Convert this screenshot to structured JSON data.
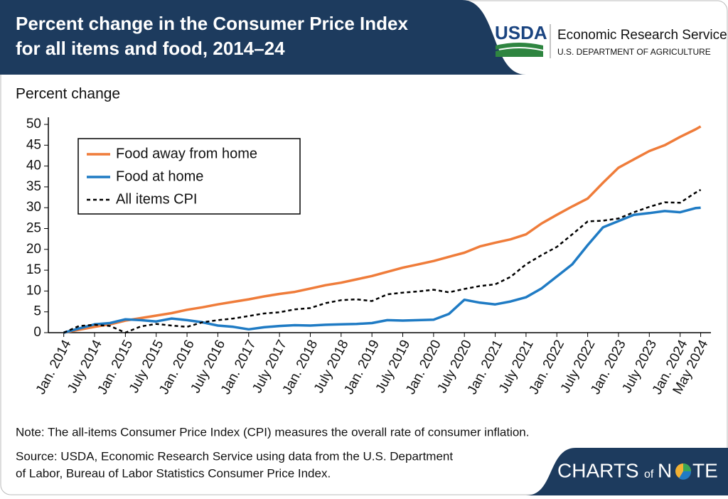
{
  "chart_data": {
    "type": "line",
    "title": [
      "Percent change in the Consumer Price Index",
      "for all items and food, 2014–24"
    ],
    "y_label": "Percent change",
    "x": [
      "2014-01",
      "2014-04",
      "2014-07",
      "2014-10",
      "2015-01",
      "2015-04",
      "2015-07",
      "2015-10",
      "2016-01",
      "2016-04",
      "2016-07",
      "2016-10",
      "2017-01",
      "2017-04",
      "2017-07",
      "2017-10",
      "2018-01",
      "2018-04",
      "2018-07",
      "2018-10",
      "2019-01",
      "2019-04",
      "2019-07",
      "2019-10",
      "2020-01",
      "2020-04",
      "2020-07",
      "2020-10",
      "2021-01",
      "2021-04",
      "2021-07",
      "2021-10",
      "2022-01",
      "2022-04",
      "2022-07",
      "2022-10",
      "2023-01",
      "2023-04",
      "2023-07",
      "2023-10",
      "2024-01",
      "2024-04",
      "2024-05"
    ],
    "series": [
      {
        "name": "Food away from home",
        "color": "#ef7c3a",
        "dash": false,
        "values": [
          0,
          0.7,
          1.4,
          2.0,
          2.9,
          3.5,
          4.1,
          4.7,
          5.5,
          6.1,
          6.8,
          7.4,
          8.0,
          8.7,
          9.3,
          9.8,
          10.6,
          11.4,
          12.0,
          12.8,
          13.6,
          14.6,
          15.6,
          16.4,
          17.2,
          18.2,
          19.2,
          20.7,
          21.6,
          22.4,
          23.6,
          26.2,
          28.3,
          30.3,
          32.2,
          36.0,
          39.6,
          41.6,
          43.6,
          45.0,
          47.0,
          48.8,
          49.5
        ]
      },
      {
        "name": "Food at home",
        "color": "#1f7bc4",
        "dash": false,
        "values": [
          0,
          1.0,
          2.0,
          2.3,
          3.2,
          3.0,
          2.7,
          3.4,
          3.0,
          2.5,
          1.7,
          1.4,
          0.8,
          1.3,
          1.6,
          1.8,
          1.7,
          1.9,
          2.0,
          2.1,
          2.3,
          3.0,
          2.9,
          3.0,
          3.1,
          4.5,
          7.9,
          7.2,
          6.8,
          7.5,
          8.5,
          10.6,
          13.5,
          16.4,
          21.0,
          25.3,
          26.8,
          28.3,
          28.7,
          29.2,
          28.9,
          29.9,
          30.0
        ]
      },
      {
        "name": "All items CPI",
        "color": "#000000",
        "dash": true,
        "values": [
          0,
          1.6,
          1.9,
          1.6,
          0.0,
          1.5,
          2.1,
          1.7,
          1.4,
          2.5,
          3.0,
          3.4,
          4.0,
          4.6,
          4.9,
          5.6,
          5.9,
          7.1,
          7.8,
          8.0,
          7.6,
          9.2,
          9.6,
          9.9,
          10.3,
          9.7,
          10.5,
          11.2,
          11.6,
          13.4,
          16.4,
          18.6,
          20.6,
          23.6,
          26.7,
          26.9,
          27.4,
          28.9,
          30.2,
          31.3,
          31.2,
          33.6,
          34.3
        ]
      }
    ],
    "xlim": [
      "2013-10",
      "2024-07"
    ],
    "xticks": [
      {
        "value": "2014-01",
        "label": "Jan. 2014"
      },
      {
        "value": "2014-07",
        "label": "July 2014"
      },
      {
        "value": "2015-01",
        "label": "Jan. 2015"
      },
      {
        "value": "2015-07",
        "label": "July 2015"
      },
      {
        "value": "2016-01",
        "label": "Jan. 2016"
      },
      {
        "value": "2016-07",
        "label": "July 2016"
      },
      {
        "value": "2017-01",
        "label": "Jan. 2017"
      },
      {
        "value": "2017-07",
        "label": "July 2017"
      },
      {
        "value": "2018-01",
        "label": "Jan. 2018"
      },
      {
        "value": "2018-07",
        "label": "July 2018"
      },
      {
        "value": "2019-01",
        "label": "Jan. 2019"
      },
      {
        "value": "2019-07",
        "label": "July 2019"
      },
      {
        "value": "2020-01",
        "label": "Jan. 2020"
      },
      {
        "value": "2020-07",
        "label": "July 2020"
      },
      {
        "value": "2021-01",
        "label": "Jan. 2021"
      },
      {
        "value": "2021-07",
        "label": "July 2021"
      },
      {
        "value": "2022-01",
        "label": "Jan. 2022"
      },
      {
        "value": "2022-07",
        "label": "July 2022"
      },
      {
        "value": "2023-01",
        "label": "Jan. 2023"
      },
      {
        "value": "2023-07",
        "label": "July 2023"
      },
      {
        "value": "2024-01",
        "label": "Jan. 2024"
      },
      {
        "value": "2024-05",
        "label": "May 2024"
      }
    ],
    "ylim": [
      0,
      50
    ],
    "yticks": [
      0,
      5,
      10,
      15,
      20,
      25,
      30,
      35,
      40,
      45,
      50
    ],
    "grid": false,
    "legend": "upper left"
  },
  "header": {
    "logo": "USDA",
    "agency": "Economic Research Service",
    "department": "U.S. DEPARTMENT OF AGRICULTURE"
  },
  "footer": {
    "note": "Note: The all-items Consumer Price Index (CPI) measures the overall rate of consumer inflation.",
    "source": [
      "Source: USDA, Economic Research Service using data from the U.S. Department",
      "of Labor, Bureau of Labor Statistics Consumer Price Index."
    ],
    "brand": [
      "CHARTS",
      "of",
      "N",
      "TE"
    ]
  }
}
